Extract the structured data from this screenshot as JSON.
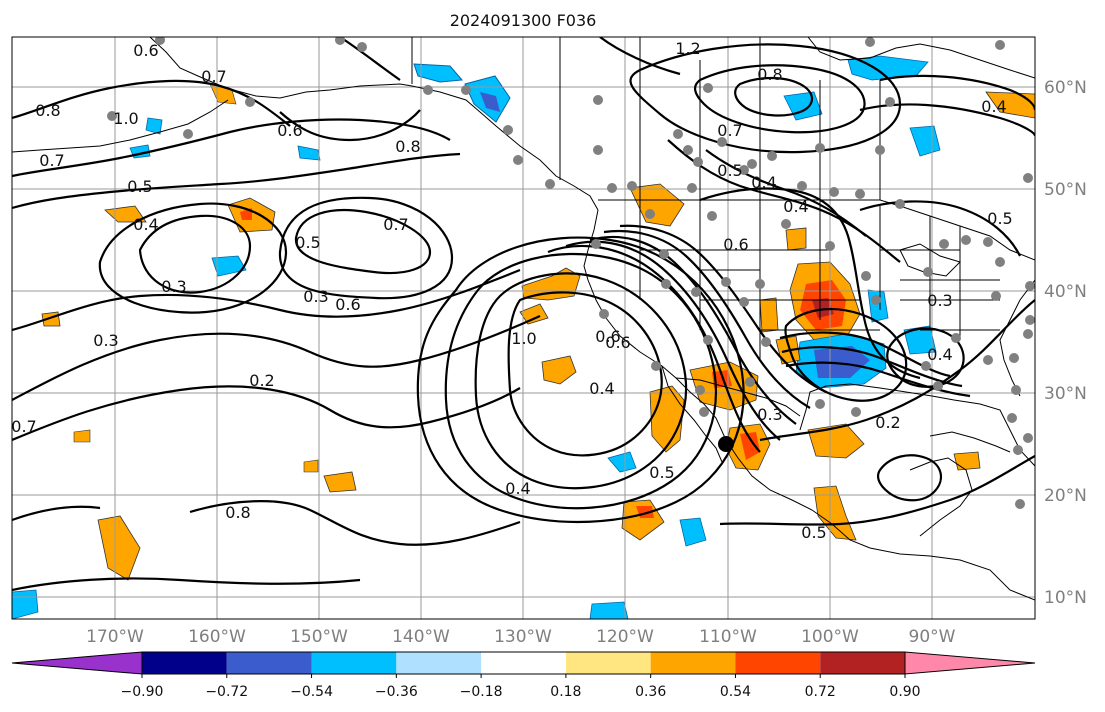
{
  "figure": {
    "title": "2024091300 F036"
  },
  "chart_data": {
    "type": "map",
    "region": "Northeast Pacific and North America",
    "lon_range": [
      -180,
      -80
    ],
    "lat_range": [
      8,
      66
    ],
    "longitude_ticks": [
      "170°W",
      "160°W",
      "150°W",
      "140°W",
      "130°W",
      "120°W",
      "110°W",
      "100°W",
      "90°W"
    ],
    "latitude_ticks": [
      "60°N",
      "50°N",
      "40°N",
      "30°N",
      "20°N",
      "10°N"
    ],
    "contour_labels": [
      "0.6",
      "0.8",
      "1.0",
      "0.7",
      "0.5",
      "0.4",
      "0.3",
      "0.7",
      "0.6",
      "0.8",
      "0.7",
      "0.5",
      "0.3",
      "0.6",
      "0.3",
      "0.2",
      "0.7",
      "0.8",
      "1.0",
      "0.6",
      "0.4",
      "0.5",
      "0.4",
      "1.2",
      "0.8",
      "0.7",
      "0.5",
      "0.4",
      "0.4",
      "0.4",
      "0.5",
      "0.6",
      "0.3",
      "0.2",
      "0.5",
      "0.3",
      "0.6",
      "0.4"
    ],
    "colorbar": {
      "ticks": [
        "−0.90",
        "−0.72",
        "−0.54",
        "−0.36",
        "−0.18",
        "0.18",
        "0.36",
        "0.54",
        "0.72",
        "0.90"
      ],
      "colors": [
        "#9932cc",
        "#00008b",
        "#3a5ccc",
        "#00bfff",
        "#b0e0ff",
        "#ffffff",
        "#ffe680",
        "#ffa500",
        "#ff4500",
        "#b22222",
        "#ff88aa"
      ]
    },
    "station_dots_color": "#808080",
    "contour_color": "#000000"
  }
}
